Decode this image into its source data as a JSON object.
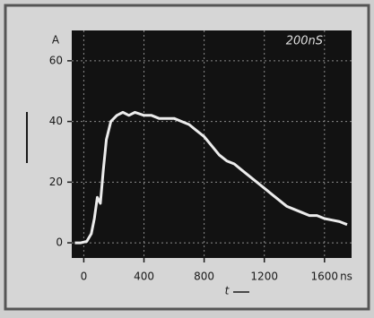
{
  "chart_data": {
    "type": "line",
    "y_unit": "A",
    "x_unit": "ns",
    "x_label": "t",
    "annotation": "200nS",
    "x": [
      -60,
      -20,
      20,
      50,
      70,
      90,
      110,
      130,
      150,
      180,
      220,
      260,
      300,
      340,
      400,
      450,
      500,
      550,
      600,
      650,
      700,
      750,
      800,
      850,
      900,
      950,
      1000,
      1050,
      1100,
      1150,
      1200,
      1250,
      1300,
      1350,
      1400,
      1450,
      1500,
      1550,
      1600,
      1650,
      1700,
      1750
    ],
    "values": [
      0,
      0,
      0.5,
      3,
      8,
      15,
      13,
      24,
      34,
      40,
      42,
      43,
      42,
      43,
      42,
      42,
      41,
      41,
      41,
      40,
      39,
      37,
      35,
      32,
      29,
      27,
      26,
      24,
      22,
      20,
      18,
      16,
      14,
      12,
      11,
      10,
      9,
      9,
      8,
      7.5,
      7,
      6
    ],
    "color": "#ececec",
    "xlim": [
      -80,
      1780
    ],
    "xticks": [
      0,
      400,
      800,
      1200,
      1600
    ],
    "ylim": [
      -5,
      70
    ],
    "yticks": [
      0,
      20,
      40,
      60
    ],
    "grid": true
  }
}
